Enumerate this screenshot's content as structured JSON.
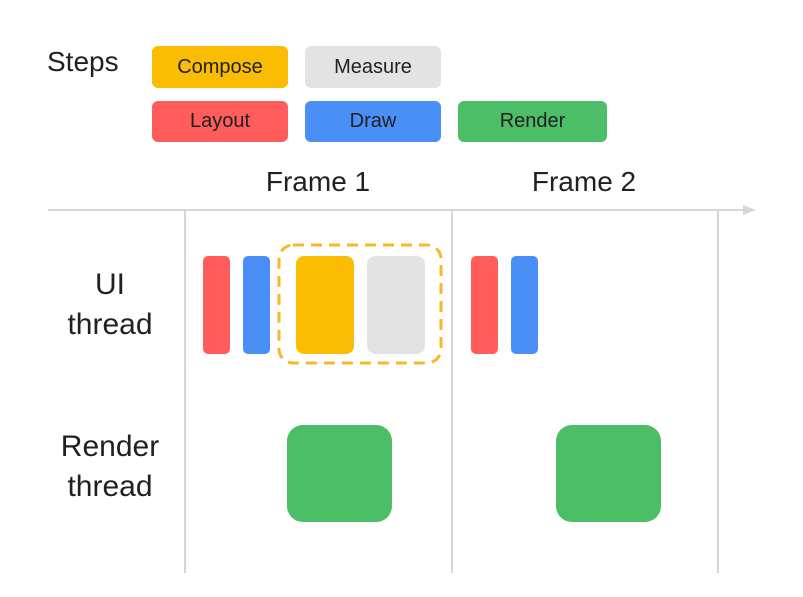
{
  "legend": {
    "title": "Steps",
    "steps": [
      {
        "label": "Compose",
        "color": "#fbbc04"
      },
      {
        "label": "Measure",
        "color": "#e3e3e3"
      },
      {
        "label": "Layout",
        "color": "#ff5c5c"
      },
      {
        "label": "Draw",
        "color": "#4a8ff5"
      },
      {
        "label": "Render",
        "color": "#4cbe67"
      }
    ]
  },
  "frames": [
    "Frame 1",
    "Frame 2"
  ],
  "rows": {
    "ui_thread": "UI\nthread",
    "render_thread": "Render\nthread"
  },
  "colors": {
    "axis": "#d6d6d6",
    "highlight_border": "#f7b928"
  }
}
